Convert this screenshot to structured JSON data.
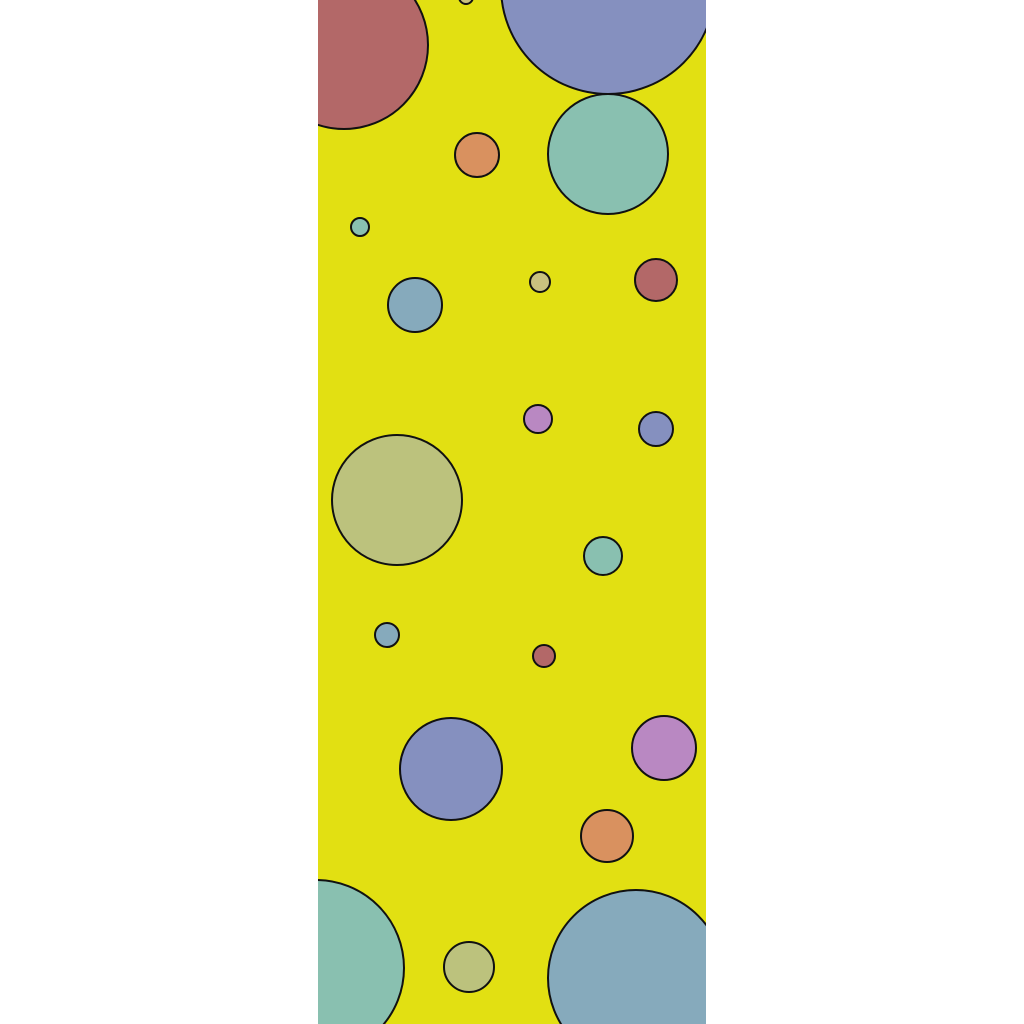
{
  "background": "#ffffff",
  "strip_color": "#e2e012",
  "outline_color": "#111111",
  "palette": {
    "red": "#b36868",
    "indigo": "#8590bf",
    "orange": "#d9915f",
    "teal": "#89c0b0",
    "steel": "#86aabc",
    "khaki": "#bcc27d",
    "olive_light": "#bcc27d",
    "purple": "#b988c2",
    "tan": "#c9c17f"
  }
}
